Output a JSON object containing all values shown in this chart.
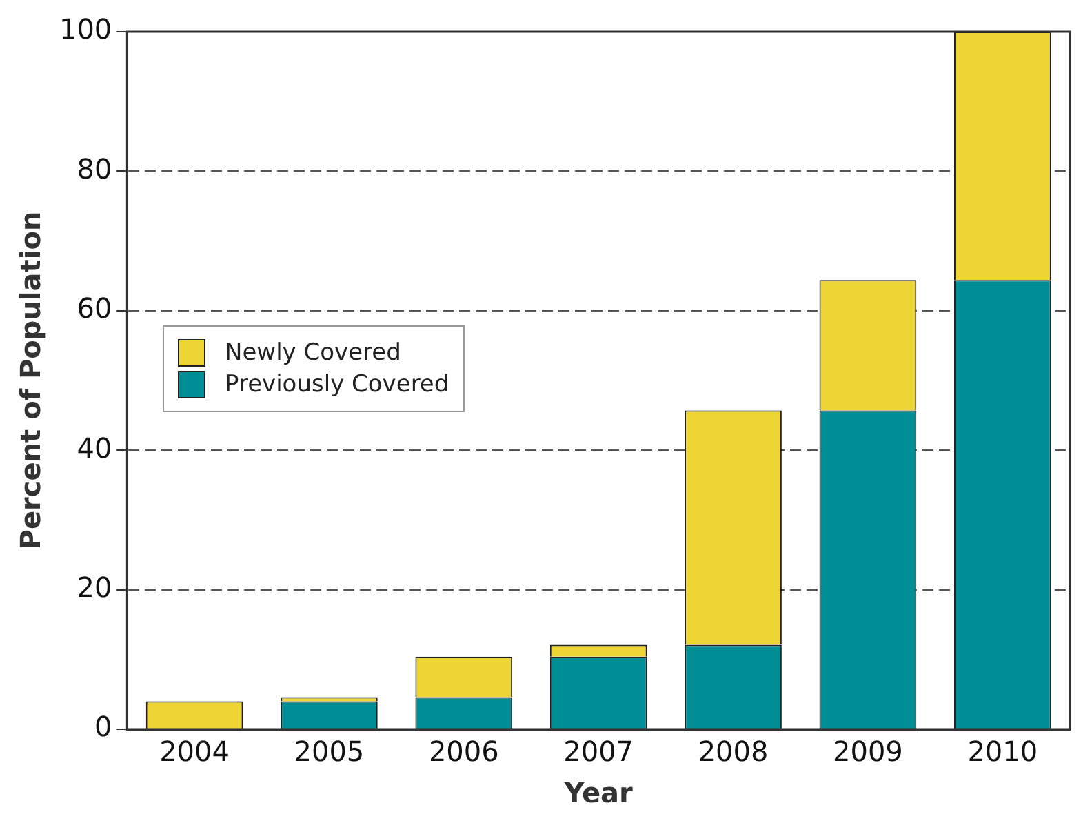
{
  "chart_data": {
    "type": "bar",
    "xlabel": "Year",
    "ylabel": "Percent of Population",
    "categories": [
      "2004",
      "2005",
      "2006",
      "2007",
      "2008",
      "2009",
      "2010"
    ],
    "stacked": true,
    "series": [
      {
        "name": "Previously Covered",
        "color": "#008e96",
        "values": [
          0,
          4.0,
          4.6,
          10.4,
          12.1,
          45.7,
          64.4
        ]
      },
      {
        "name": "Newly Covered",
        "color": "#edd535",
        "values": [
          4.0,
          0.6,
          5.8,
          1.7,
          33.6,
          18.7,
          35.6
        ]
      }
    ],
    "ylim": [
      0,
      100
    ],
    "yticks": [
      0,
      20,
      40,
      60,
      80,
      100
    ],
    "grid": "y",
    "legend": "left"
  }
}
